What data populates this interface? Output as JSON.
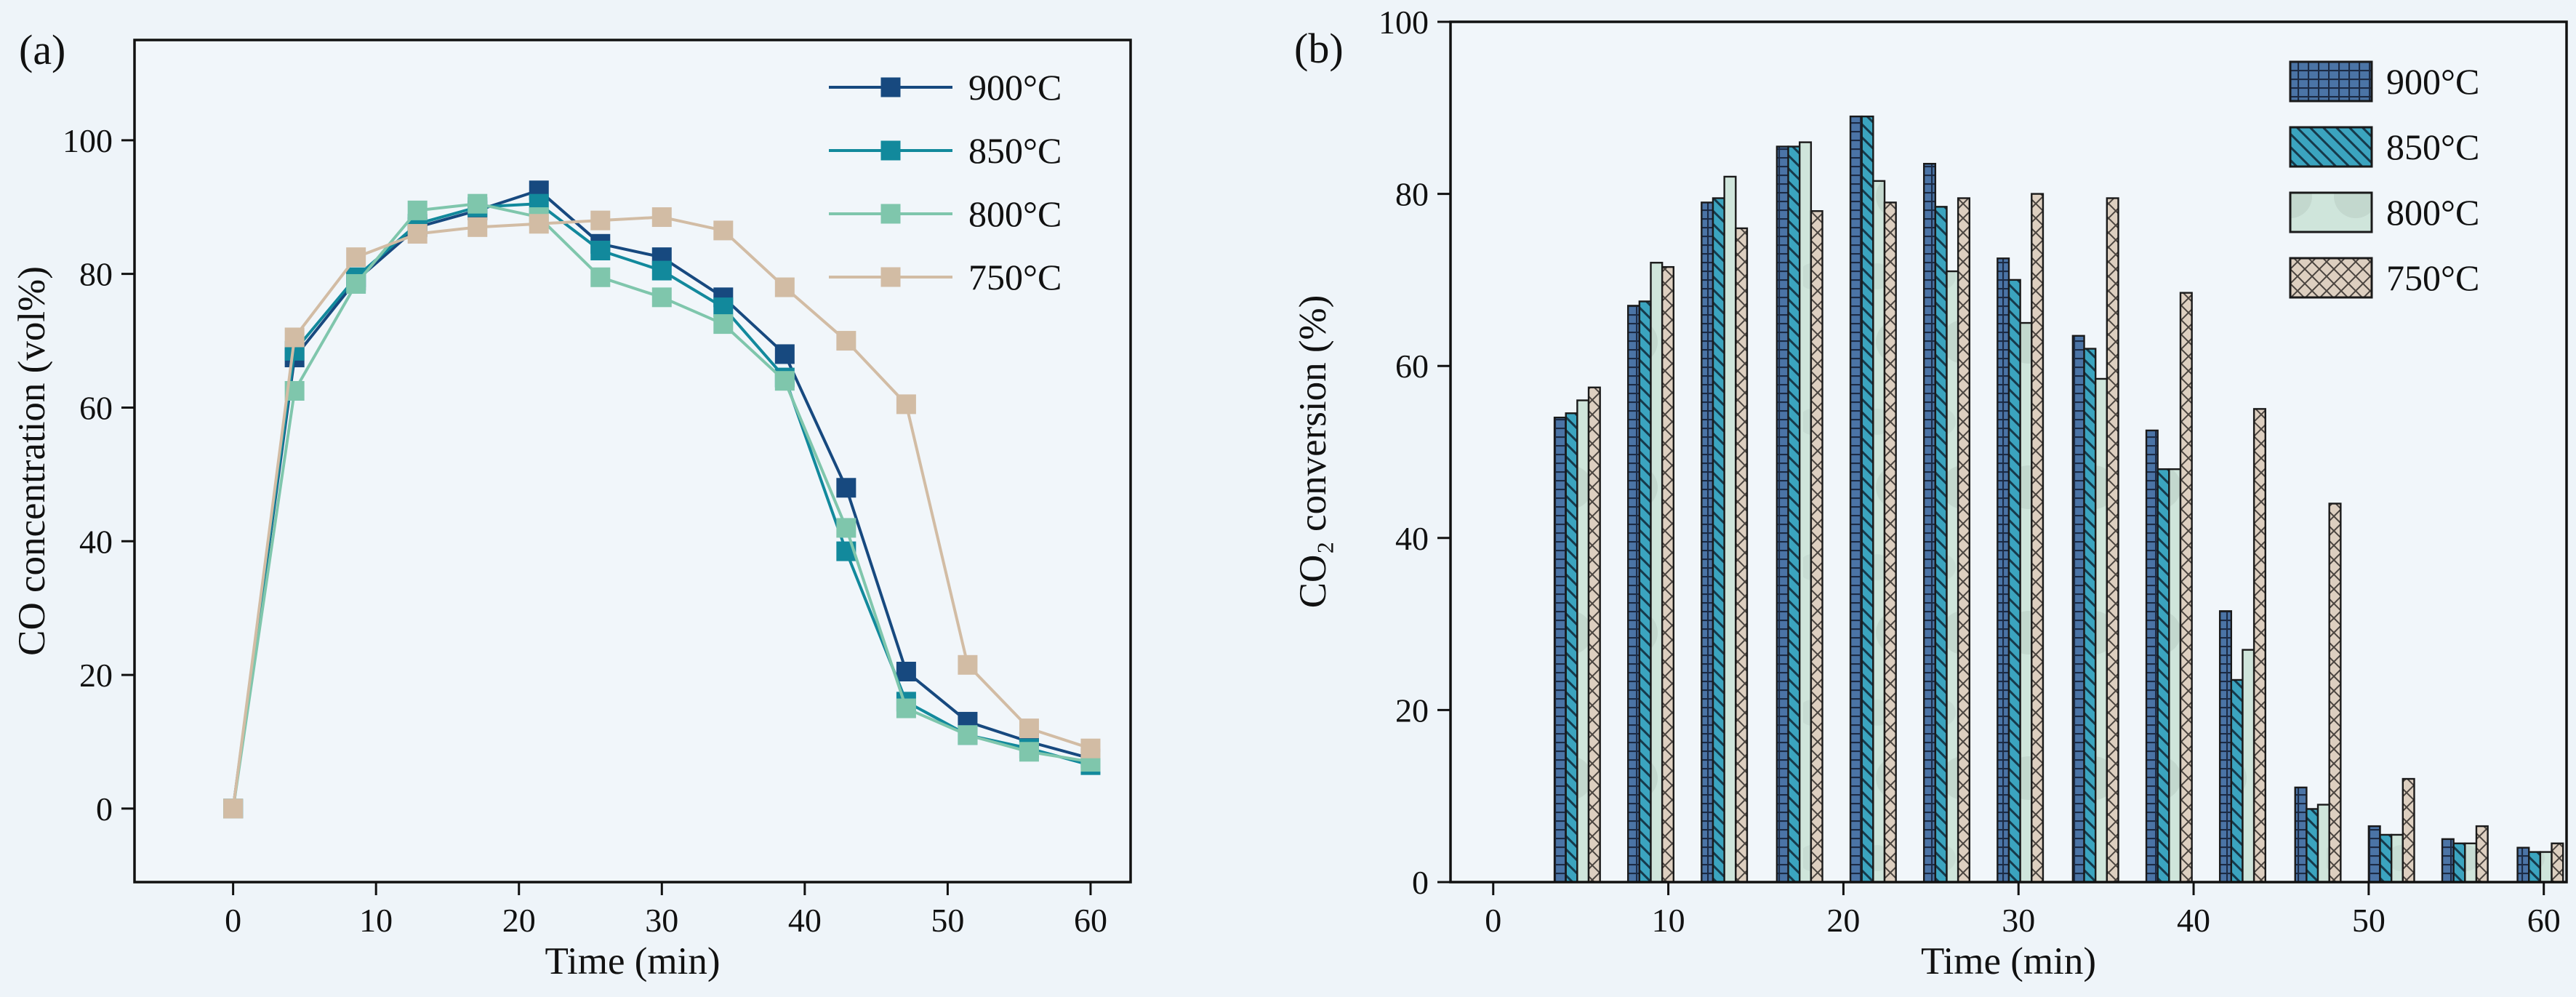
{
  "figure": {
    "background": "#eef4f9",
    "plot_background": "#f1f6fa",
    "axis_color": "#111111",
    "bar_outline_color": "#1a1a1a",
    "panels": [
      {
        "label": "(a)"
      },
      {
        "label": "(b)"
      }
    ]
  },
  "chart_data": [
    {
      "type": "line",
      "panel_label": "(a)",
      "xlabel": "Time (min)",
      "ylabel": "CO concentration (vol%)",
      "xlim": [
        -6.9,
        62.8
      ],
      "ylim": [
        -11,
        115
      ],
      "xticks": [
        0,
        10,
        20,
        30,
        40,
        50,
        60
      ],
      "yticks": [
        0,
        20,
        40,
        60,
        80,
        100
      ],
      "grid": false,
      "legend_position": "top-right",
      "marker": "square",
      "x": [
        0,
        4.3,
        8.6,
        12.9,
        17.1,
        21.4,
        25.7,
        30,
        34.3,
        38.6,
        42.9,
        47.1,
        51.4,
        55.7,
        60
      ],
      "series": [
        {
          "name": "900°C",
          "color": "#17497f",
          "values": [
            0,
            67.5,
            79,
            87,
            89.5,
            92.5,
            84.5,
            82.5,
            76.5,
            68,
            48,
            20.5,
            13,
            10,
            7.5
          ]
        },
        {
          "name": "850°C",
          "color": "#12899c",
          "values": [
            0,
            68.5,
            79.5,
            87.5,
            90,
            90.5,
            83.5,
            80.5,
            75,
            64.5,
            38.5,
            16,
            11,
            9,
            6.5
          ]
        },
        {
          "name": "800°C",
          "color": "#7fc6ac",
          "values": [
            0,
            62.5,
            78.5,
            89.5,
            90.5,
            88.5,
            79.5,
            76.5,
            72.5,
            64,
            42,
            15,
            11,
            8.5,
            7
          ]
        },
        {
          "name": "750°C",
          "color": "#d2bca4",
          "values": [
            0,
            70.5,
            82.5,
            86,
            87,
            87.5,
            88,
            88.5,
            86.5,
            78,
            70,
            60.5,
            21.5,
            12,
            9
          ]
        }
      ]
    },
    {
      "type": "bar",
      "panel_label": "(b)",
      "xlabel": "Time (min)",
      "ylabel": "CO₂ conversion (%)",
      "xlim": [
        -2.44,
        61.3
      ],
      "ylim": [
        0,
        100
      ],
      "xticks": [
        0,
        10,
        20,
        30,
        40,
        50,
        60
      ],
      "yticks": [
        0,
        20,
        40,
        60,
        80,
        100
      ],
      "grid": false,
      "legend_position": "top-right",
      "bar_width_min": 0.65,
      "categories": [
        4.8,
        9,
        13.2,
        17.5,
        21.7,
        25.9,
        30.1,
        34.4,
        38.6,
        42.8,
        47.1,
        51.3,
        55.5,
        59.8
      ],
      "series": [
        {
          "name": "900°C",
          "fill": "#4b74a6",
          "hatch": "grid",
          "hatch_color": "#1c2b45",
          "values": [
            54,
            67,
            79,
            85.5,
            89,
            83.5,
            72.5,
            63.5,
            52.5,
            31.5,
            11,
            6.5,
            5,
            4
          ]
        },
        {
          "name": "850°C",
          "fill": "#3ba4bf",
          "hatch": "diagonal",
          "hatch_color": "#16394a",
          "values": [
            54.5,
            67.5,
            79.5,
            85.5,
            89,
            78.5,
            70,
            62,
            48,
            23.5,
            8.5,
            5.5,
            4.5,
            3.5
          ]
        },
        {
          "name": "800°C",
          "fill": "#cfe5db",
          "hatch": "smudge",
          "hatch_color": "#7d8f88",
          "values": [
            56,
            72,
            82,
            86,
            81.5,
            71,
            65,
            58.5,
            48,
            27,
            9,
            5.5,
            4.5,
            3.5
          ]
        },
        {
          "name": "750°C",
          "fill": "#ddcfc0",
          "hatch": "cross",
          "hatch_color": "#4a443f",
          "values": [
            57.5,
            71.5,
            76,
            78,
            79,
            79.5,
            80,
            79.5,
            68.5,
            55,
            44,
            12,
            6.5,
            4.5
          ]
        }
      ]
    }
  ]
}
